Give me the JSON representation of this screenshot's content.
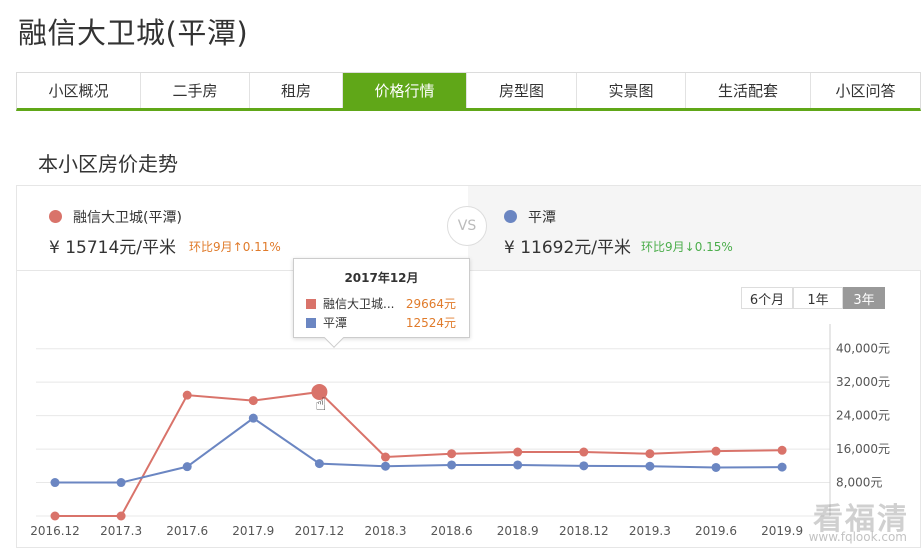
{
  "page": {
    "title": "融信大卫城(平潭)"
  },
  "tabs": [
    {
      "label": "小区概况"
    },
    {
      "label": "二手房"
    },
    {
      "label": "租房"
    },
    {
      "label": "价格行情",
      "active": true
    },
    {
      "label": "房型图"
    },
    {
      "label": "实景图"
    },
    {
      "label": "生活配套"
    },
    {
      "label": "小区问答"
    }
  ],
  "section": {
    "title": "本小区房价走势"
  },
  "compare": {
    "left": {
      "name": "融信大卫城(平潭)",
      "price": "¥ 15714元/平米",
      "change": "环比9月↑0.11%",
      "color": "#d9736a",
      "change_color": "#e07b2b"
    },
    "vs": "VS",
    "right": {
      "name": "平潭",
      "price": "¥ 11692元/平米",
      "change": "环比9月↓0.15%",
      "color": "#6b86c2",
      "change_color": "#4cae4c"
    }
  },
  "periods": [
    {
      "label": "6个月"
    },
    {
      "label": "1年"
    },
    {
      "label": "3年",
      "active": true
    }
  ],
  "tooltip": {
    "title": "2017年12月",
    "rows": [
      {
        "name": "融信大卫城...",
        "value": "29664元",
        "color": "#d9736a"
      },
      {
        "name": "平潭",
        "value": "12524元",
        "color": "#6b86c2"
      }
    ]
  },
  "watermark": {
    "text": "看福清",
    "sub": "www.fqlook.com"
  },
  "chart_data": {
    "type": "line",
    "categories": [
      "2016.12",
      "2017.3",
      "2017.6",
      "2017.9",
      "2017.12",
      "2018.3",
      "2018.6",
      "2018.9",
      "2018.12",
      "2019.3",
      "2019.6",
      "2019.9"
    ],
    "series": [
      {
        "name": "融信大卫城(平潭)",
        "color": "#d9736a",
        "values": [
          0,
          0,
          28900,
          27600,
          29664,
          14100,
          14900,
          15300,
          15300,
          14900,
          15500,
          15714
        ]
      },
      {
        "name": "平潭",
        "color": "#6b86c2",
        "values": [
          8000,
          8000,
          11800,
          23400,
          12524,
          11900,
          12200,
          12200,
          12000,
          11900,
          11600,
          11692
        ]
      }
    ],
    "y_ticks": [
      "8,000元",
      "16,000元",
      "24,000元",
      "32,000元",
      "40,000元"
    ],
    "y_tick_values": [
      8000,
      16000,
      24000,
      32000,
      40000
    ],
    "ylim": [
      0,
      44000
    ],
    "grid": true,
    "highlight_index": 4
  }
}
